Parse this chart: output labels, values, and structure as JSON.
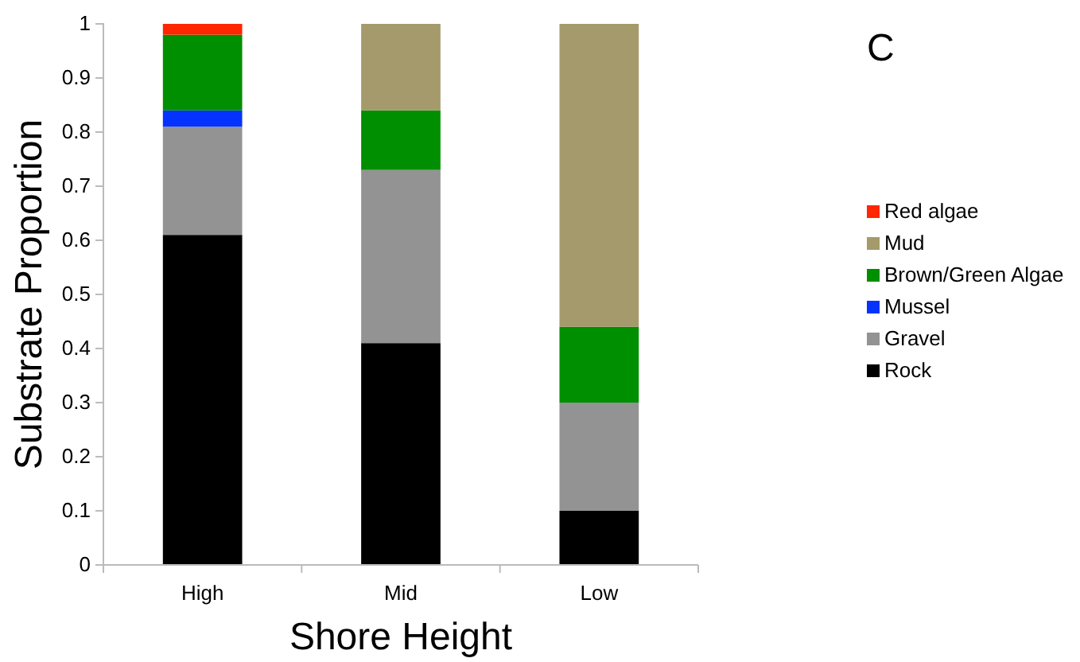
{
  "chart_data": {
    "type": "bar",
    "stacked": true,
    "title": "C",
    "xlabel": "Shore Height",
    "ylabel": "Substrate Proportion",
    "categories": [
      "High",
      "Mid",
      "Low"
    ],
    "series": [
      {
        "name": "Rock",
        "color": "#000000",
        "values": [
          0.61,
          0.41,
          0.1
        ]
      },
      {
        "name": "Gravel",
        "color": "#939393",
        "values": [
          0.2,
          0.32,
          0.2
        ]
      },
      {
        "name": "Mussel",
        "color": "#0433ff",
        "values": [
          0.03,
          0,
          0
        ]
      },
      {
        "name": "Brown/Green Algae",
        "color": "#008f00",
        "values": [
          0.14,
          0.11,
          0.14
        ]
      },
      {
        "name": "Mud",
        "color": "#a59a6b",
        "values": [
          0,
          0.16,
          0.56
        ]
      },
      {
        "name": "Red algae",
        "color": "#ff2600",
        "values": [
          0.02,
          0,
          0
        ]
      }
    ],
    "ylim": [
      0,
      1
    ],
    "yticks": [
      0,
      0.1,
      0.2,
      0.3,
      0.4,
      0.5,
      0.6,
      0.7,
      0.8,
      0.9,
      1
    ],
    "grid": false,
    "legend": "right"
  }
}
